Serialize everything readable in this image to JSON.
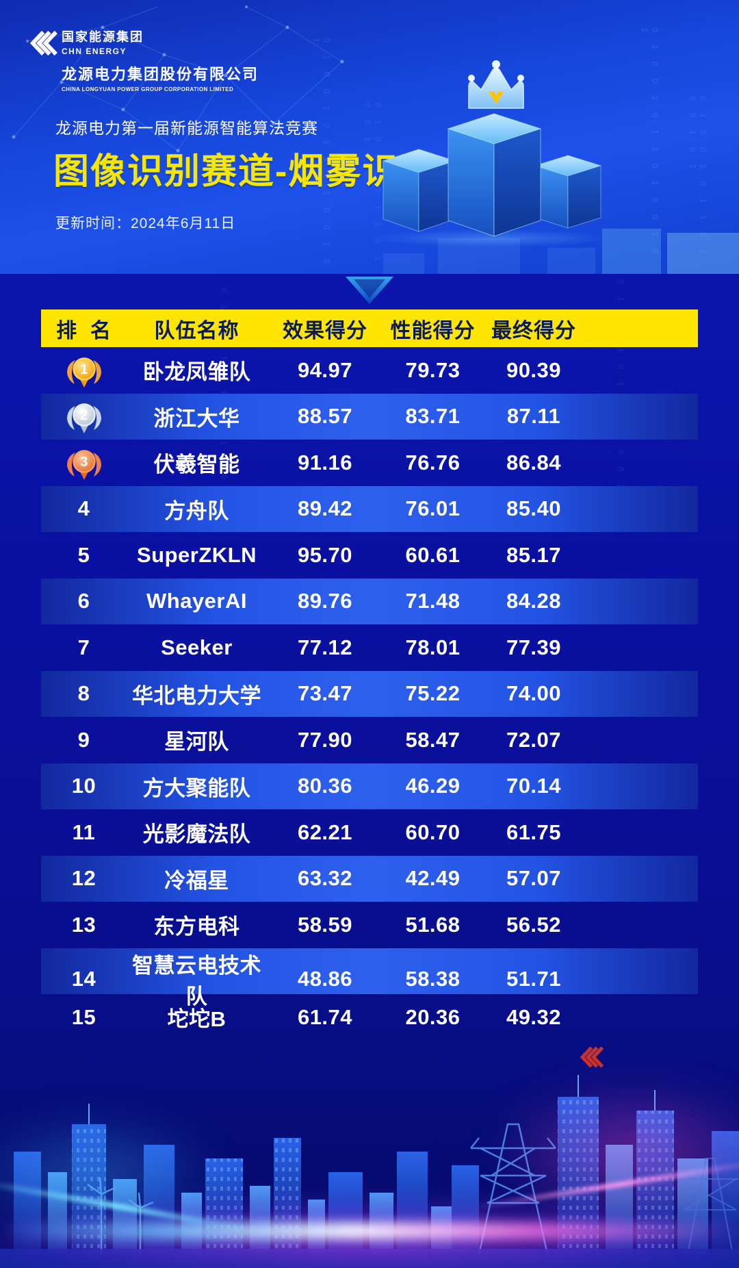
{
  "brand": {
    "org_cn": "国家能源集团",
    "org_en": "CHN ENERGY",
    "company_cn": "龙源电力集团股份有限公司",
    "company_en": "CHINA LONGYUAN POWER GROUP CORPORATION LIMITED"
  },
  "header": {
    "competition": "龙源电力第一届新能源智能算法竞赛",
    "title": "图像识别赛道-烟雾识别",
    "update_time": "更新时间：2024年6月11日"
  },
  "colors": {
    "accent_yellow": "#ffe600",
    "title_yellow": "#f7e600",
    "bg_bright_blue": "#1d51ea",
    "bg_navy": "#0a0f98",
    "gold": "#f59b00",
    "silver": "#c7d6e8",
    "bronze": "#e06a28"
  },
  "decor": {
    "binary": "0 1 0 0 1 0 1 1 0 1 0 0 1 0 1"
  },
  "table": {
    "columns": [
      "排  名",
      "队伍名称",
      "效果得分",
      "性能得分",
      "最终得分"
    ],
    "rows": [
      {
        "rank": "1",
        "medal": "gold",
        "team": "卧龙凤雏队",
        "effect": "94.97",
        "perf": "79.73",
        "final": "90.39"
      },
      {
        "rank": "2",
        "medal": "silver",
        "team": "浙江大华",
        "effect": "88.57",
        "perf": "83.71",
        "final": "87.11"
      },
      {
        "rank": "3",
        "medal": "bronze",
        "team": "伏羲智能",
        "effect": "91.16",
        "perf": "76.76",
        "final": "86.84"
      },
      {
        "rank": "4",
        "medal": null,
        "team": "方舟队",
        "effect": "89.42",
        "perf": "76.01",
        "final": "85.40"
      },
      {
        "rank": "5",
        "medal": null,
        "team": "SuperZKLN",
        "effect": "95.70",
        "perf": "60.61",
        "final": "85.17"
      },
      {
        "rank": "6",
        "medal": null,
        "team": "WhayerAI",
        "effect": "89.76",
        "perf": "71.48",
        "final": "84.28"
      },
      {
        "rank": "7",
        "medal": null,
        "team": "Seeker",
        "effect": "77.12",
        "perf": "78.01",
        "final": "77.39"
      },
      {
        "rank": "8",
        "medal": null,
        "team": "华北电力大学",
        "effect": "73.47",
        "perf": "75.22",
        "final": "74.00"
      },
      {
        "rank": "9",
        "medal": null,
        "team": "星河队",
        "effect": "77.90",
        "perf": "58.47",
        "final": "72.07"
      },
      {
        "rank": "10",
        "medal": null,
        "team": "方大聚能队",
        "effect": "80.36",
        "perf": "46.29",
        "final": "70.14"
      },
      {
        "rank": "11",
        "medal": null,
        "team": "光影魔法队",
        "effect": "62.21",
        "perf": "60.70",
        "final": "61.75"
      },
      {
        "rank": "12",
        "medal": null,
        "team": "冷福星",
        "effect": "63.32",
        "perf": "42.49",
        "final": "57.07"
      },
      {
        "rank": "13",
        "medal": null,
        "team": "东方电科",
        "effect": "58.59",
        "perf": "51.68",
        "final": "56.52"
      },
      {
        "rank": "14",
        "medal": null,
        "team": "智慧云电技术队",
        "effect": "48.86",
        "perf": "58.38",
        "final": "51.71"
      },
      {
        "rank": "15",
        "medal": null,
        "team": "坨坨B",
        "effect": "61.74",
        "perf": "20.36",
        "final": "49.32"
      }
    ]
  },
  "chart_data": {
    "type": "table",
    "title": "图像识别赛道-烟雾识别",
    "subtitle": "龙源电力第一届新能源智能算法竞赛",
    "updated": "2024年6月11日",
    "columns": [
      "排名",
      "队伍名称",
      "效果得分",
      "性能得分",
      "最终得分"
    ],
    "rows": [
      [
        1,
        "卧龙凤雏队",
        94.97,
        79.73,
        90.39
      ],
      [
        2,
        "浙江大华",
        88.57,
        83.71,
        87.11
      ],
      [
        3,
        "伏羲智能",
        91.16,
        76.76,
        86.84
      ],
      [
        4,
        "方舟队",
        89.42,
        76.01,
        85.4
      ],
      [
        5,
        "SuperZKLN",
        95.7,
        60.61,
        85.17
      ],
      [
        6,
        "WhayerAI",
        89.76,
        71.48,
        84.28
      ],
      [
        7,
        "Seeker",
        77.12,
        78.01,
        77.39
      ],
      [
        8,
        "华北电力大学",
        73.47,
        75.22,
        74.0
      ],
      [
        9,
        "星河队",
        77.9,
        58.47,
        72.07
      ],
      [
        10,
        "方大聚能队",
        80.36,
        46.29,
        70.14
      ],
      [
        11,
        "光影魔法队",
        62.21,
        60.7,
        61.75
      ],
      [
        12,
        "冷福星",
        63.32,
        42.49,
        57.07
      ],
      [
        13,
        "东方电科",
        58.59,
        51.68,
        56.52
      ],
      [
        14,
        "智慧云电技术队",
        48.86,
        58.38,
        51.71
      ],
      [
        15,
        "坨坨B",
        61.74,
        20.36,
        49.32
      ]
    ]
  }
}
